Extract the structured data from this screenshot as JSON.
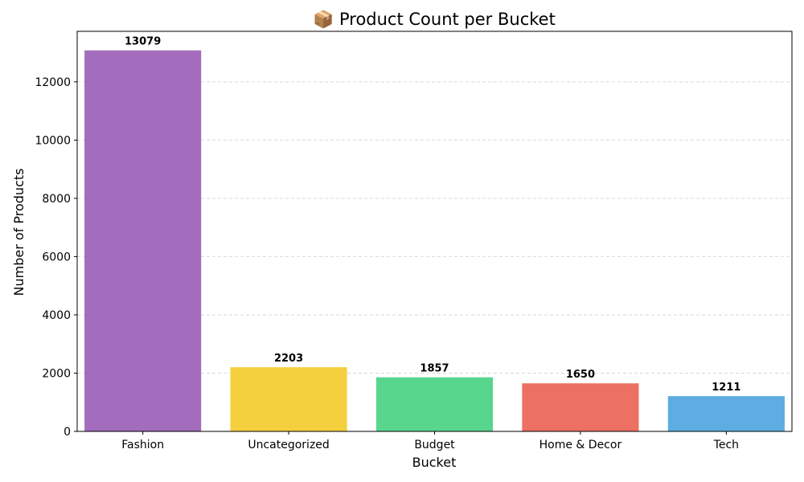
{
  "chart_data": {
    "type": "bar",
    "title": "📦 Product Count per Bucket",
    "xlabel": "Bucket",
    "ylabel": "Number of Products",
    "categories": [
      "Fashion",
      "Uncategorized",
      "Budget",
      "Home & Decor",
      "Tech"
    ],
    "values": [
      13079,
      2203,
      1857,
      1650,
      1211
    ],
    "value_labels": [
      "13079",
      "2203",
      "1857",
      "1650",
      "1211"
    ],
    "colors": [
      "#a36cbd",
      "#f4d03f",
      "#58d68d",
      "#ec7063",
      "#5dade2"
    ],
    "ylim": [
      0,
      13733
    ],
    "yticks": [
      0,
      2000,
      4000,
      6000,
      8000,
      10000,
      12000
    ],
    "ytick_labels": [
      "0",
      "2000",
      "4000",
      "6000",
      "8000",
      "10000",
      "12000"
    ],
    "grid": "y, dashed",
    "legend": "none"
  }
}
